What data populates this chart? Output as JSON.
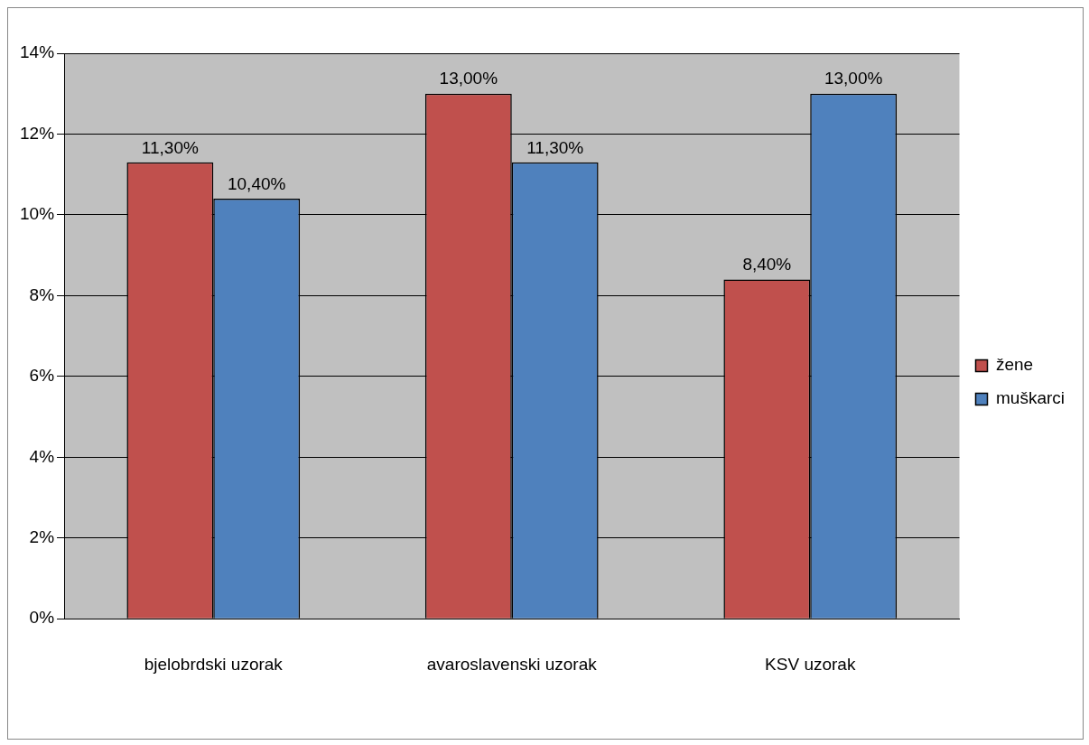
{
  "chart_data": {
    "type": "bar",
    "categories": [
      "bjelobrdski uzorak",
      "avaroslavenski uzorak",
      "KSV uzorak"
    ],
    "series": [
      {
        "name": "žene",
        "color": "#c0504d",
        "values": [
          11.3,
          13,
          8.4
        ],
        "value_labels": [
          "11,30%",
          "13,00%",
          "8,40%"
        ]
      },
      {
        "name": "muškarci",
        "color": "#4f81bd",
        "values": [
          10.4,
          11.3,
          13
        ],
        "value_labels": [
          "10,40%",
          "11,30%",
          "13,00%"
        ]
      }
    ],
    "ylim": [
      0,
      14
    ],
    "yticks": [
      {
        "value": 0,
        "label": "0%"
      },
      {
        "value": 2,
        "label": "2%"
      },
      {
        "value": 4,
        "label": "4%"
      },
      {
        "value": 6,
        "label": "6%"
      },
      {
        "value": 8,
        "label": "8%"
      },
      {
        "value": 10,
        "label": "10%"
      },
      {
        "value": 12,
        "label": "12%"
      },
      {
        "value": 14,
        "label": "14%"
      }
    ],
    "grid": "y",
    "legend": "right"
  }
}
